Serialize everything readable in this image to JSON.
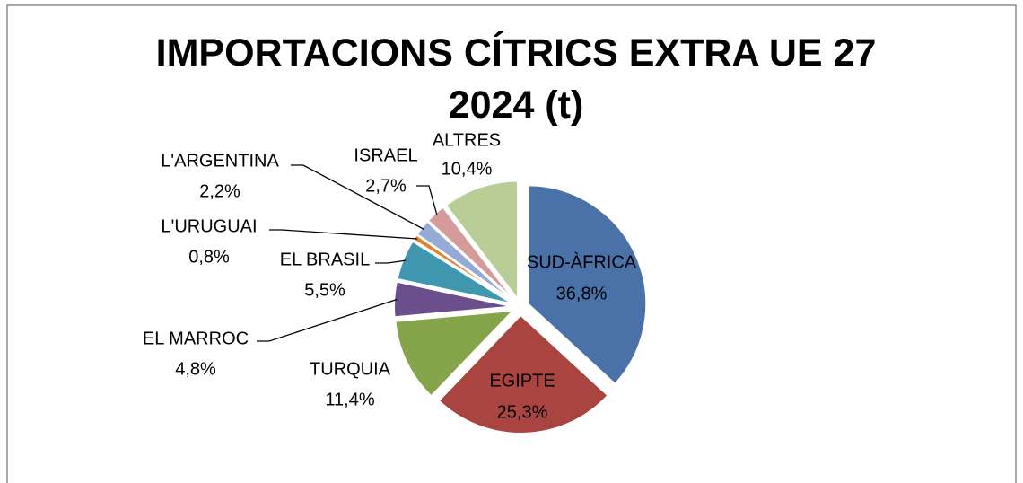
{
  "chart_data": {
    "type": "pie",
    "title": "IMPORTACIONS CÍTRICS EXTRA UE 27 2024 (t)",
    "categories": [
      "SUD-ÀFRICA",
      "EGIPTE",
      "TURQUIA",
      "EL MARROC",
      "EL BRASIL",
      "L'URUGUAI",
      "L'ARGENTINA",
      "ISRAEL",
      "ALTRES"
    ],
    "values": [
      36.8,
      25.3,
      11.4,
      4.8,
      5.5,
      0.8,
      2.2,
      2.7,
      10.4
    ],
    "value_labels": [
      "36,8%",
      "25,3%",
      "11,4%",
      "4,8%",
      "5,5%",
      "0,8%",
      "2,2%",
      "2,7%",
      "10,4%"
    ],
    "colors": [
      "#4a72a8",
      "#a94441",
      "#86a44a",
      "#6a4f8c",
      "#3f98b0",
      "#e1822b",
      "#95abd6",
      "#d59a9a",
      "#b9cd96"
    ]
  }
}
